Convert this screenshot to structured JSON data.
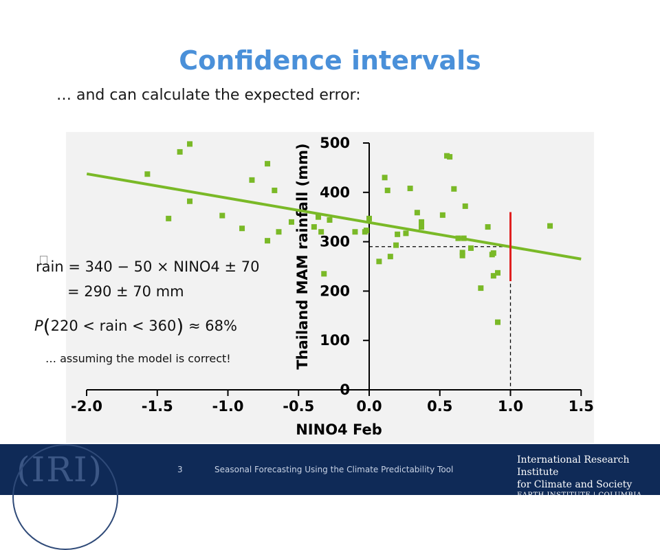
{
  "slide": {
    "title": "Confidence intervals",
    "subtitle": "… and can calculate the expected error:",
    "note": "… assuming the model is correct!"
  },
  "equations": {
    "line1": "rain = 340 − 50 × NINO4 ± 70",
    "line2": "= 290 ± 70  mm",
    "line3_p": "P",
    "line3_inner": "220 < rain < 360",
    "line3_result": "≈ 68%"
  },
  "footer": {
    "logo": "IRI",
    "page_number": "3",
    "text": "Seasonal Forecasting Using the Climate Predictability Tool",
    "org_line1": "International Research Institute",
    "org_line2": "for Climate and Society",
    "org_line3": "EARTH INSTITUTE | COLUMBIA UNIVERSITY"
  },
  "colors": {
    "title": "#4a90d9",
    "points": "#7ab927",
    "regression": "#7ab927",
    "interval": "#e02020",
    "footer_bg": "#0f2a57"
  },
  "chart_data": {
    "type": "scatter",
    "xlabel": "NINO4 Feb",
    "ylabel": "Thailand MAM rainfall (mm)",
    "xlim": [
      -2.0,
      1.5
    ],
    "ylim": [
      0,
      500
    ],
    "xticks": [
      "-2.0",
      "-1.5",
      "-1.0",
      "-0.5",
      "0.0",
      "0.5",
      "1.0",
      "1.5"
    ],
    "yticks": [
      "0",
      "100",
      "200",
      "300",
      "400",
      "500"
    ],
    "grid": false,
    "regression": {
      "intercept": 340,
      "slope": -50,
      "x_range": [
        -2.0,
        1.5
      ]
    },
    "prediction": {
      "x": 1.0,
      "y": 290,
      "lower": 220,
      "upper": 360
    },
    "points": [
      [
        -1.57,
        437
      ],
      [
        -1.34,
        482
      ],
      [
        -1.27,
        498
      ],
      [
        -1.27,
        382
      ],
      [
        -1.42,
        347
      ],
      [
        -1.04,
        353
      ],
      [
        -0.9,
        327
      ],
      [
        -0.83,
        425
      ],
      [
        -0.72,
        458
      ],
      [
        -0.72,
        302
      ],
      [
        -0.67,
        404
      ],
      [
        -0.64,
        320
      ],
      [
        -0.55,
        340
      ],
      [
        -0.39,
        330
      ],
      [
        -0.36,
        350
      ],
      [
        -0.34,
        320
      ],
      [
        -0.32,
        235
      ],
      [
        -0.28,
        344
      ],
      [
        -0.1,
        320
      ],
      [
        -0.03,
        320
      ],
      [
        -0.02,
        323
      ],
      [
        0.0,
        347
      ],
      [
        0.07,
        260
      ],
      [
        0.11,
        430
      ],
      [
        0.13,
        404
      ],
      [
        0.15,
        270
      ],
      [
        0.19,
        293
      ],
      [
        0.2,
        315
      ],
      [
        0.26,
        317
      ],
      [
        0.29,
        408
      ],
      [
        0.34,
        359
      ],
      [
        0.37,
        340
      ],
      [
        0.37,
        330
      ],
      [
        0.52,
        354
      ],
      [
        0.55,
        474
      ],
      [
        0.57,
        472
      ],
      [
        0.6,
        407
      ],
      [
        0.63,
        307
      ],
      [
        0.66,
        272
      ],
      [
        0.66,
        278
      ],
      [
        0.67,
        307
      ],
      [
        0.68,
        372
      ],
      [
        0.72,
        287
      ],
      [
        0.79,
        206
      ],
      [
        0.84,
        330
      ],
      [
        0.87,
        274
      ],
      [
        0.88,
        277
      ],
      [
        0.88,
        231
      ],
      [
        0.91,
        237
      ],
      [
        0.91,
        137
      ],
      [
        1.28,
        332
      ]
    ]
  }
}
